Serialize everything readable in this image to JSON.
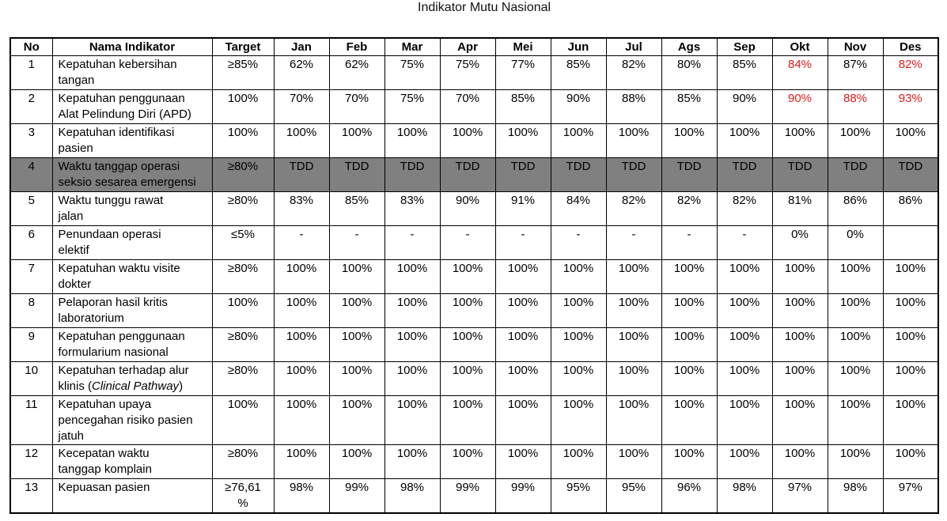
{
  "title": "Indikator Mutu Nasional",
  "colors": {
    "highlight_row_bg": "#808080",
    "attention_value_text": "#e01a1a",
    "border": "#000000",
    "text": "#000000"
  },
  "table": {
    "columns": [
      "No",
      "Nama Indikator",
      "Target",
      "Jan",
      "Feb",
      "Mar",
      "Apr",
      "Mei",
      "Jun",
      "Jul",
      "Ags",
      "Sep",
      "Okt",
      "Nov",
      "Des"
    ],
    "rows": [
      {
        "no": "1",
        "name": [
          {
            "text": "Kepatuhan kebersihan\ntangan"
          }
        ],
        "target": "≥85%",
        "values": [
          "62%",
          "62%",
          "75%",
          "75%",
          "77%",
          "85%",
          "82%",
          "80%",
          "85%",
          "84%",
          "87%",
          "82%"
        ],
        "red": [
          9,
          11
        ],
        "highlight": false
      },
      {
        "no": "2",
        "name": [
          {
            "text": "Kepatuhan penggunaan\nAlat Pelindung Diri (APD)"
          }
        ],
        "target": "100%",
        "values": [
          "70%",
          "70%",
          "75%",
          "70%",
          "85%",
          "90%",
          "88%",
          "85%",
          "90%",
          "90%",
          "88%",
          "93%"
        ],
        "red": [
          9,
          10,
          11
        ],
        "highlight": false
      },
      {
        "no": "3",
        "name": [
          {
            "text": "Kepatuhan identifikasi\npasien"
          }
        ],
        "target": "100%",
        "values": [
          "100%",
          "100%",
          "100%",
          "100%",
          "100%",
          "100%",
          "100%",
          "100%",
          "100%",
          "100%",
          "100%",
          "100%"
        ],
        "red": [],
        "highlight": false
      },
      {
        "no": "4",
        "name": [
          {
            "text": "Waktu tanggap operasi\nseksio sesarea emergensi"
          }
        ],
        "target": "≥80%",
        "values": [
          "TDD",
          "TDD",
          "TDD",
          "TDD",
          "TDD",
          "TDD",
          "TDD",
          "TDD",
          "TDD",
          "TDD",
          "TDD",
          "TDD"
        ],
        "red": [],
        "highlight": true
      },
      {
        "no": "5",
        "name": [
          {
            "text": "Waktu tunggu rawat\njalan"
          }
        ],
        "target": "≥80%",
        "values": [
          "83%",
          "85%",
          "83%",
          "90%",
          "91%",
          "84%",
          "82%",
          "82%",
          "82%",
          "81%",
          "86%",
          "86%"
        ],
        "red": [],
        "highlight": false
      },
      {
        "no": "6",
        "name": [
          {
            "text": "Penundaan operasi\nelektif"
          }
        ],
        "target": "≤5%",
        "values": [
          "-",
          "-",
          "-",
          "-",
          "-",
          "-",
          "-",
          "-",
          "-",
          "0%",
          "0%",
          ""
        ],
        "red": [],
        "highlight": false
      },
      {
        "no": "7",
        "name": [
          {
            "text": "Kepatuhan waktu visite\ndokter"
          }
        ],
        "target": "≥80%",
        "values": [
          "100%",
          "100%",
          "100%",
          "100%",
          "100%",
          "100%",
          "100%",
          "100%",
          "100%",
          "100%",
          "100%",
          "100%"
        ],
        "red": [],
        "highlight": false
      },
      {
        "no": "8",
        "name": [
          {
            "text": "Pelaporan hasil kritis\nlaboratorium"
          }
        ],
        "target": "100%",
        "values": [
          "100%",
          "100%",
          "100%",
          "100%",
          "100%",
          "100%",
          "100%",
          "100%",
          "100%",
          "100%",
          "100%",
          "100%"
        ],
        "red": [],
        "highlight": false
      },
      {
        "no": "9",
        "name": [
          {
            "text": "Kepatuhan penggunaan\nformularium nasional"
          }
        ],
        "target": "≥80%",
        "values": [
          "100%",
          "100%",
          "100%",
          "100%",
          "100%",
          "100%",
          "100%",
          "100%",
          "100%",
          "100%",
          "100%",
          "100%"
        ],
        "red": [],
        "highlight": false
      },
      {
        "no": "10",
        "name": [
          {
            "text": "Kepatuhan terhadap alur\nklinis ("
          },
          {
            "text": "Clinical Pathway",
            "italic": true
          },
          {
            "text": ")"
          }
        ],
        "target": "≥80%",
        "values": [
          "100%",
          "100%",
          "100%",
          "100%",
          "100%",
          "100%",
          "100%",
          "100%",
          "100%",
          "100%",
          "100%",
          "100%"
        ],
        "red": [],
        "highlight": false
      },
      {
        "no": "11",
        "name": [
          {
            "text": "Kepatuhan upaya\npencegahan risiko pasien\njatuh"
          }
        ],
        "target": "100%",
        "values": [
          "100%",
          "100%",
          "100%",
          "100%",
          "100%",
          "100%",
          "100%",
          "100%",
          "100%",
          "100%",
          "100%",
          "100%"
        ],
        "red": [],
        "highlight": false
      },
      {
        "no": "12",
        "name": [
          {
            "text": "Kecepatan waktu\ntanggap komplain"
          }
        ],
        "target": "≥80%",
        "values": [
          "100%",
          "100%",
          "100%",
          "100%",
          "100%",
          "100%",
          "100%",
          "100%",
          "100%",
          "100%",
          "100%",
          "100%"
        ],
        "red": [],
        "highlight": false
      },
      {
        "no": "13",
        "name": [
          {
            "text": "Kepuasan pasien"
          }
        ],
        "target": "≥76,61\n%",
        "values": [
          "98%",
          "99%",
          "98%",
          "99%",
          "99%",
          "95%",
          "95%",
          "96%",
          "98%",
          "97%",
          "98%",
          "97%"
        ],
        "red": [],
        "highlight": false
      }
    ]
  }
}
